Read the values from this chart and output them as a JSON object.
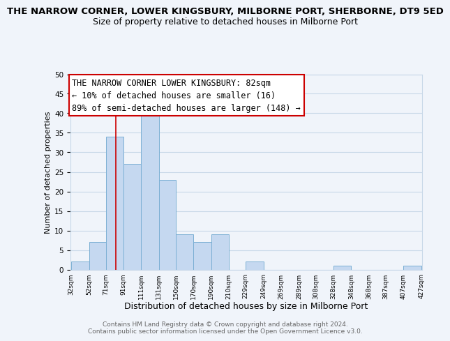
{
  "title": "THE NARROW CORNER, LOWER KINGSBURY, MILBORNE PORT, SHERBORNE, DT9 5ED",
  "subtitle": "Size of property relative to detached houses in Milborne Port",
  "xlabel": "Distribution of detached houses by size in Milborne Port",
  "ylabel": "Number of detached properties",
  "bar_edges": [
    32,
    52,
    71,
    91,
    111,
    131,
    150,
    170,
    190,
    210,
    229,
    249,
    269,
    289,
    308,
    328,
    348,
    368,
    387,
    407,
    427
  ],
  "bar_heights": [
    2,
    7,
    34,
    27,
    41,
    23,
    9,
    7,
    9,
    0,
    2,
    0,
    0,
    0,
    0,
    1,
    0,
    0,
    0,
    1
  ],
  "bar_color": "#c5d8f0",
  "bar_edge_color": "#7bafd4",
  "vline_x": 82,
  "vline_color": "#cc0000",
  "tick_labels": [
    "32sqm",
    "52sqm",
    "71sqm",
    "91sqm",
    "111sqm",
    "131sqm",
    "150sqm",
    "170sqm",
    "190sqm",
    "210sqm",
    "229sqm",
    "249sqm",
    "269sqm",
    "289sqm",
    "308sqm",
    "328sqm",
    "348sqm",
    "368sqm",
    "387sqm",
    "407sqm",
    "427sqm"
  ],
  "ylim": [
    0,
    50
  ],
  "yticks": [
    0,
    5,
    10,
    15,
    20,
    25,
    30,
    35,
    40,
    45,
    50
  ],
  "annotation_box_text": "THE NARROW CORNER LOWER KINGSBURY: 82sqm\n← 10% of detached houses are smaller (16)\n89% of semi-detached houses are larger (148) →",
  "bg_color": "#f0f4fa",
  "grid_color": "#c8d8e8",
  "footer_text": "Contains HM Land Registry data © Crown copyright and database right 2024.\nContains public sector information licensed under the Open Government Licence v3.0.",
  "title_fontsize": 9.5,
  "subtitle_fontsize": 9,
  "annotation_fontsize": 8.5,
  "ylabel_fontsize": 8,
  "xlabel_fontsize": 9
}
